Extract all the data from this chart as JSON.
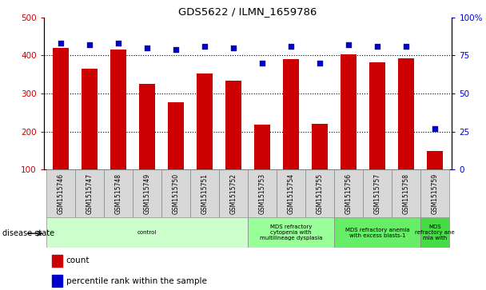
{
  "title": "GDS5622 / ILMN_1659786",
  "samples": [
    "GSM1515746",
    "GSM1515747",
    "GSM1515748",
    "GSM1515749",
    "GSM1515750",
    "GSM1515751",
    "GSM1515752",
    "GSM1515753",
    "GSM1515754",
    "GSM1515755",
    "GSM1515756",
    "GSM1515757",
    "GSM1515758",
    "GSM1515759"
  ],
  "bar_values": [
    420,
    365,
    415,
    325,
    278,
    352,
    333,
    218,
    390,
    220,
    402,
    382,
    393,
    148
  ],
  "dot_values_pct": [
    83,
    82,
    83,
    80,
    79,
    81,
    80,
    70,
    81,
    70,
    82,
    81,
    81,
    27
  ],
  "bar_color": "#cc0000",
  "dot_color": "#0000cc",
  "ylim_left": [
    100,
    500
  ],
  "yticks_left": [
    100,
    200,
    300,
    400,
    500
  ],
  "yticks_right_pct": [
    0,
    25,
    50,
    75,
    100
  ],
  "ytick_labels_right": [
    "0",
    "25",
    "50",
    "75",
    "100%"
  ],
  "grid_values": [
    200,
    300,
    400
  ],
  "disease_groups": [
    {
      "label": "control",
      "start": 0,
      "end": 7,
      "color": "#ccffcc"
    },
    {
      "label": "MDS refractory\ncytopenia with\nmultilineage dysplasia",
      "start": 7,
      "end": 10,
      "color": "#99ff99"
    },
    {
      "label": "MDS refractory anemia\nwith excess blasts-1",
      "start": 10,
      "end": 13,
      "color": "#66ee66"
    },
    {
      "label": "MDS\nrefractory ane\nmia with",
      "start": 13,
      "end": 14,
      "color": "#44dd44"
    }
  ],
  "disease_state_label": "disease state",
  "legend_items": [
    {
      "label": "count",
      "color": "#cc0000"
    },
    {
      "label": "percentile rank within the sample",
      "color": "#0000cc"
    }
  ],
  "fig_width": 6.08,
  "fig_height": 3.63,
  "dpi": 100
}
